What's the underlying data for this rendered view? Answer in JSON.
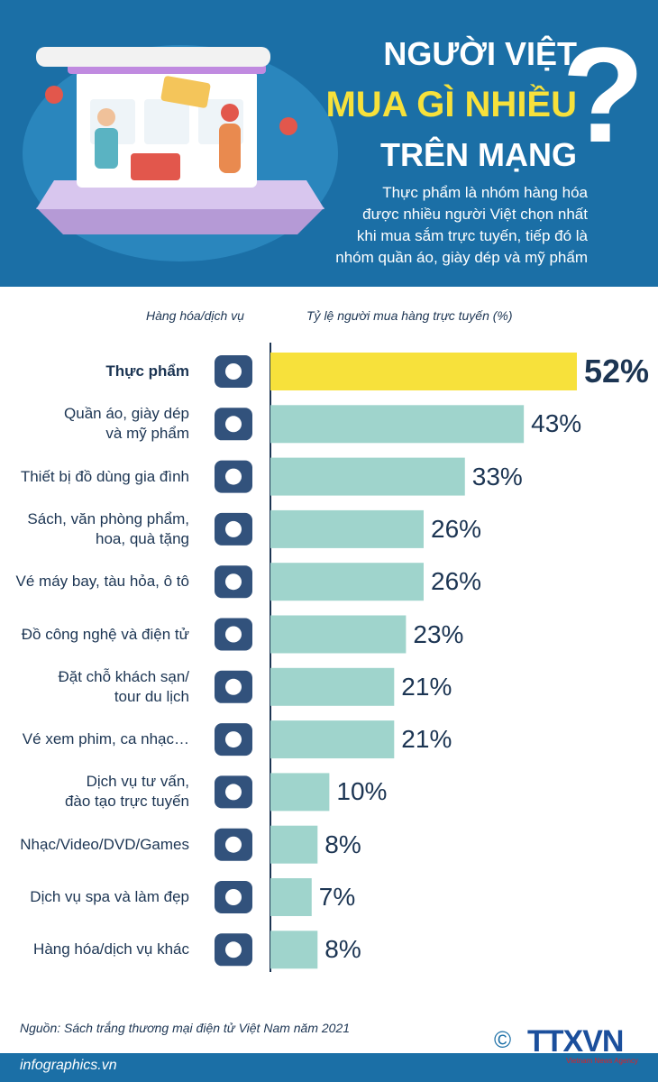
{
  "chart_data": {
    "type": "bar",
    "title_lines": [
      "NGƯỜI VIỆT",
      "MUA GÌ NHIỀU",
      "TRÊN MẠNG"
    ],
    "title_mark": "?",
    "subtitle_lines": [
      "Thực phẩm là nhóm hàng hóa",
      "được nhiều người Việt chọn nhất",
      "khi mua sắm trực tuyến, tiếp đó là",
      "nhóm quần áo, giày dép và mỹ phẩm"
    ],
    "category_header": "Hàng hóa/dịch vụ",
    "value_header": "Tỷ lệ người mua hàng trực tuyến (%)",
    "categories": [
      "Thực phẩm",
      "Quần áo, giày dép\nvà mỹ phẩm",
      "Thiết bị đồ dùng gia đình",
      "Sách, văn phòng phẩm,\nhoa, quà tặng",
      "Vé máy bay, tàu hỏa, ô tô",
      "Đồ công nghệ và điện tử",
      "Đặt chỗ khách sạn/\ntour du lịch",
      "Vé xem phim, ca nhạc…",
      "Dịch vụ tư vấn,\nđào tạo trực tuyến",
      "Nhạc/Video/DVD/Games",
      "Dịch vụ spa và làm đẹp",
      "Hàng hóa/dịch vụ khác"
    ],
    "values": [
      52,
      43,
      33,
      26,
      26,
      23,
      21,
      21,
      10,
      8,
      7,
      8
    ],
    "value_labels": [
      "52%",
      "43%",
      "33%",
      "26%",
      "26%",
      "23%",
      "21%",
      "21%",
      "10%",
      "8%",
      "7%",
      "8%"
    ],
    "colors": [
      "#f7e13b",
      "#9fd4cc",
      "#9fd4cc",
      "#9fd4cc",
      "#9fd4cc",
      "#9fd4cc",
      "#9fd4cc",
      "#9fd4cc",
      "#9fd4cc",
      "#9fd4cc",
      "#9fd4cc",
      "#9fd4cc"
    ],
    "source": "Nguồn: Sách trắng thương mại điện tử Việt Nam năm 2021",
    "website": "infographics.vn",
    "logo": "TTXVN",
    "logo_caption": "Vietnam News Agency",
    "copyright": "©"
  }
}
